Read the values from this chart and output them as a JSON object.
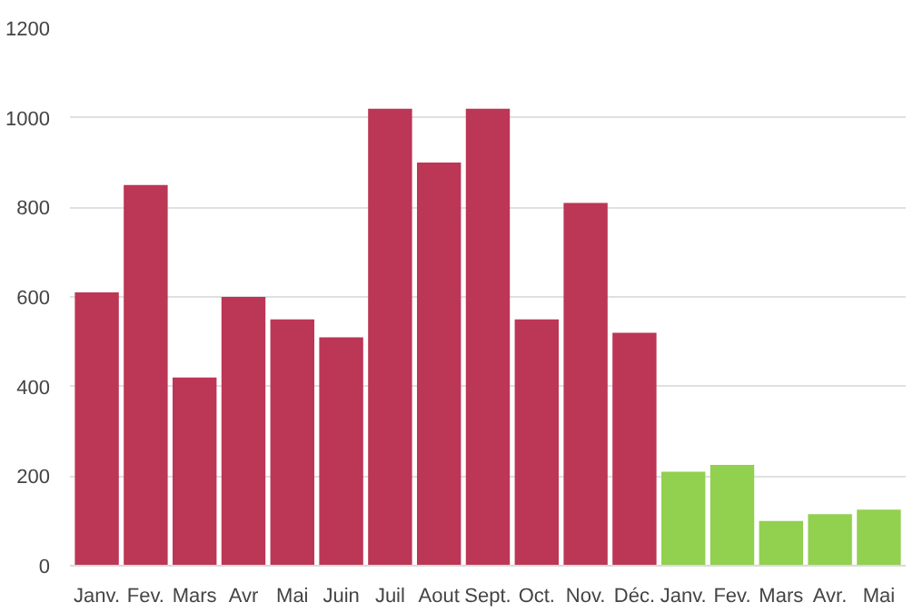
{
  "chart_data": {
    "type": "bar",
    "categories": [
      "Janv.",
      "Fev.",
      "Mars",
      "Avr",
      "Mai",
      "Juin",
      "Juil",
      "Aout",
      "Sept.",
      "Oct.",
      "Nov.",
      "Déc.",
      "Janv.",
      "Fev.",
      "Mars",
      "Avr.",
      "Mai"
    ],
    "values": [
      610,
      850,
      420,
      600,
      550,
      510,
      1020,
      900,
      1020,
      550,
      810,
      520,
      210,
      225,
      100,
      115,
      125
    ],
    "colors": [
      "#bc3655",
      "#bc3655",
      "#bc3655",
      "#bc3655",
      "#bc3655",
      "#bc3655",
      "#bc3655",
      "#bc3655",
      "#bc3655",
      "#bc3655",
      "#bc3655",
      "#bc3655",
      "#92d050",
      "#92d050",
      "#92d050",
      "#92d050",
      "#92d050"
    ],
    "ylim": [
      0,
      1200
    ],
    "yticks": [
      0,
      200,
      400,
      600,
      800,
      1000,
      1200
    ],
    "grid": "y"
  }
}
